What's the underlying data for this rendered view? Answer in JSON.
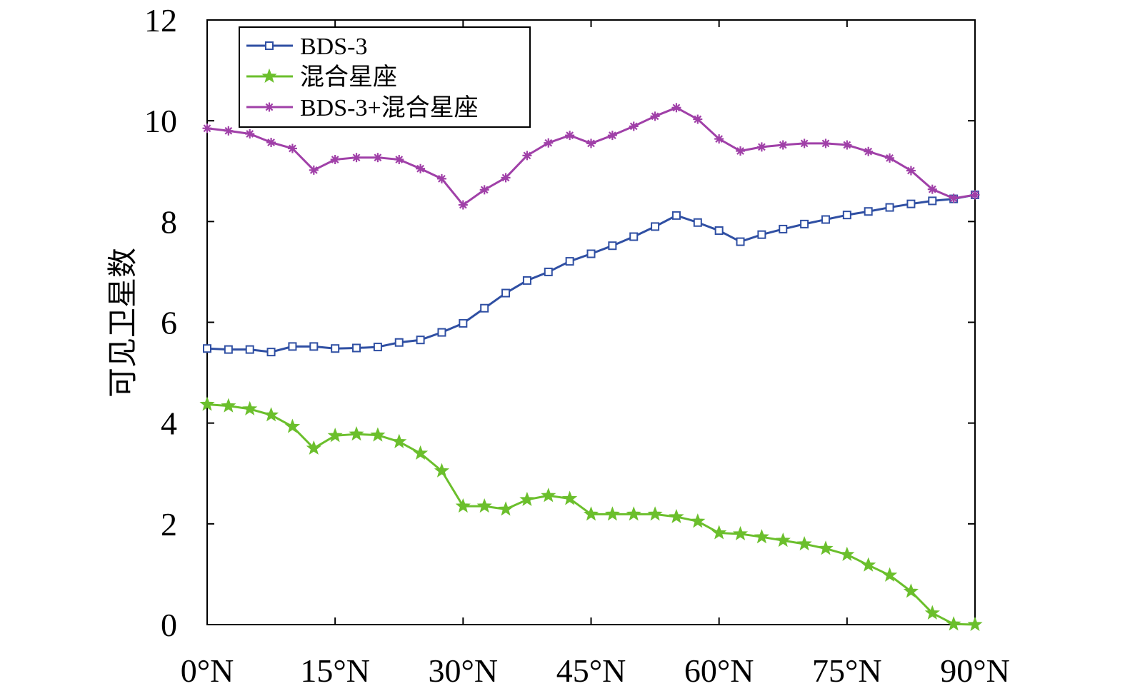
{
  "chart_data": {
    "type": "line",
    "ylabel": "可见卫星数",
    "xlabel": "",
    "xlim": [
      0,
      90
    ],
    "ylim": [
      0,
      12
    ],
    "xticks": [
      0,
      15,
      30,
      45,
      60,
      75,
      90
    ],
    "xtick_labels": [
      "0°N",
      "15°N",
      "30°N",
      "45°N",
      "60°N",
      "75°N",
      "90°N"
    ],
    "yticks": [
      0,
      2,
      4,
      6,
      8,
      10,
      12
    ],
    "ytick_labels": [
      "0",
      "2",
      "4",
      "6",
      "8",
      "10",
      "12"
    ],
    "legend_position": "top-left",
    "grid": false,
    "x": [
      0,
      2.5,
      5,
      7.5,
      10,
      12.5,
      15,
      17.5,
      20,
      22.5,
      25,
      27.5,
      30,
      32.5,
      35,
      37.5,
      40,
      42.5,
      45,
      47.5,
      50,
      52.5,
      55,
      57.5,
      60,
      62.5,
      65,
      67.5,
      70,
      72.5,
      75,
      77.5,
      80,
      82.5,
      85,
      87.5,
      90
    ],
    "series": [
      {
        "name": "BDS-3",
        "color": "#2f4fa3",
        "marker": "square",
        "values": [
          5.48,
          5.46,
          5.46,
          5.41,
          5.52,
          5.52,
          5.48,
          5.49,
          5.51,
          5.6,
          5.65,
          5.8,
          5.98,
          6.28,
          6.58,
          6.83,
          7.0,
          7.21,
          7.36,
          7.52,
          7.7,
          7.9,
          8.12,
          7.98,
          7.82,
          7.6,
          7.74,
          7.85,
          7.95,
          8.04,
          8.13,
          8.2,
          8.28,
          8.35,
          8.41,
          8.45,
          8.53
        ]
      },
      {
        "name": "混合星座",
        "color": "#6bbf2c",
        "marker": "star",
        "values": [
          4.37,
          4.34,
          4.28,
          4.16,
          3.93,
          3.5,
          3.75,
          3.78,
          3.76,
          3.63,
          3.4,
          3.05,
          2.35,
          2.35,
          2.29,
          2.48,
          2.56,
          2.5,
          2.19,
          2.19,
          2.19,
          2.19,
          2.14,
          2.05,
          1.82,
          1.8,
          1.74,
          1.67,
          1.6,
          1.51,
          1.39,
          1.18,
          0.98,
          0.66,
          0.23,
          0.01,
          0.0
        ]
      },
      {
        "name": "BDS-3+混合星座",
        "color": "#a040a8",
        "marker": "asterisk",
        "values": [
          9.85,
          9.8,
          9.74,
          9.57,
          9.45,
          9.02,
          9.23,
          9.27,
          9.27,
          9.23,
          9.05,
          8.85,
          8.33,
          8.63,
          8.87,
          9.31,
          9.56,
          9.71,
          9.55,
          9.71,
          9.89,
          10.09,
          10.26,
          10.03,
          9.64,
          9.4,
          9.48,
          9.52,
          9.55,
          9.55,
          9.52,
          9.39,
          9.26,
          9.01,
          8.64,
          8.46,
          8.53
        ]
      }
    ]
  }
}
